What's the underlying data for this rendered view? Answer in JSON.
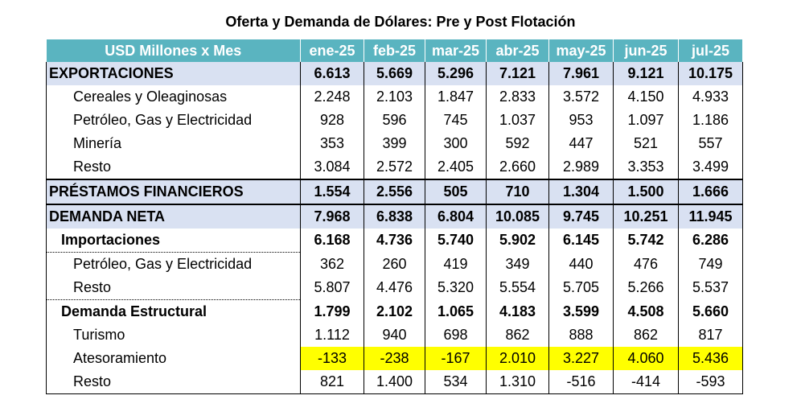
{
  "title": "Oferta y Demanda de Dólares: Pre y Post Flotación",
  "highlight_color": "#ffff00",
  "header_color": "#5ab4c0",
  "section_color": "#d9e1f2",
  "chart_data": {
    "type": "table",
    "title": "Oferta y Demanda de Dólares: Pre y Post Flotación",
    "columns": [
      "USD Millones x Mes",
      "ene-25",
      "feb-25",
      "mar-25",
      "abr-25",
      "may-25",
      "jun-25",
      "jul-25"
    ],
    "rows": [
      {
        "label": "EXPORTACIONES",
        "values": [
          "6.613",
          "5.669",
          "5.296",
          "7.121",
          "7.961",
          "9.121",
          "10.175"
        ]
      },
      {
        "label": "Cereales y Oleaginosas",
        "values": [
          "2.248",
          "2.103",
          "1.847",
          "2.833",
          "3.572",
          "4.150",
          "4.933"
        ]
      },
      {
        "label": "Petróleo, Gas y Electricidad",
        "values": [
          "928",
          "596",
          "745",
          "1.037",
          "953",
          "1.097",
          "1.186"
        ]
      },
      {
        "label": "Minería",
        "values": [
          "353",
          "399",
          "300",
          "592",
          "447",
          "521",
          "557"
        ]
      },
      {
        "label": "Resto",
        "values": [
          "3.084",
          "2.572",
          "2.405",
          "2.660",
          "2.989",
          "3.353",
          "3.499"
        ]
      },
      {
        "label": "PRÉSTAMOS FINANCIEROS",
        "values": [
          "1.554",
          "2.556",
          "505",
          "710",
          "1.304",
          "1.500",
          "1.666"
        ]
      },
      {
        "label": "DEMANDA NETA",
        "values": [
          "7.968",
          "6.838",
          "6.804",
          "10.085",
          "9.745",
          "10.251",
          "11.945"
        ]
      },
      {
        "label": "Importaciones",
        "values": [
          "6.168",
          "4.736",
          "5.740",
          "5.902",
          "6.145",
          "5.742",
          "6.286"
        ]
      },
      {
        "label": "Petróleo, Gas y Electricidad",
        "values": [
          "362",
          "260",
          "419",
          "349",
          "440",
          "476",
          "749"
        ]
      },
      {
        "label": "Resto",
        "values": [
          "5.807",
          "4.476",
          "5.320",
          "5.554",
          "5.705",
          "5.266",
          "5.537"
        ]
      },
      {
        "label": "Demanda Estructural",
        "values": [
          "1.799",
          "2.102",
          "1.065",
          "4.183",
          "3.599",
          "4.508",
          "5.660"
        ]
      },
      {
        "label": "Turismo",
        "values": [
          "1.112",
          "940",
          "698",
          "862",
          "888",
          "862",
          "817"
        ]
      },
      {
        "label": "Atesoramiento",
        "values": [
          "-133",
          "-238",
          "-167",
          "2.010",
          "3.227",
          "4.060",
          "5.436"
        ],
        "highlighted": true
      },
      {
        "label": "Resto",
        "values": [
          "821",
          "1.400",
          "534",
          "1.310",
          "-516",
          "-414",
          "-593"
        ]
      }
    ]
  }
}
